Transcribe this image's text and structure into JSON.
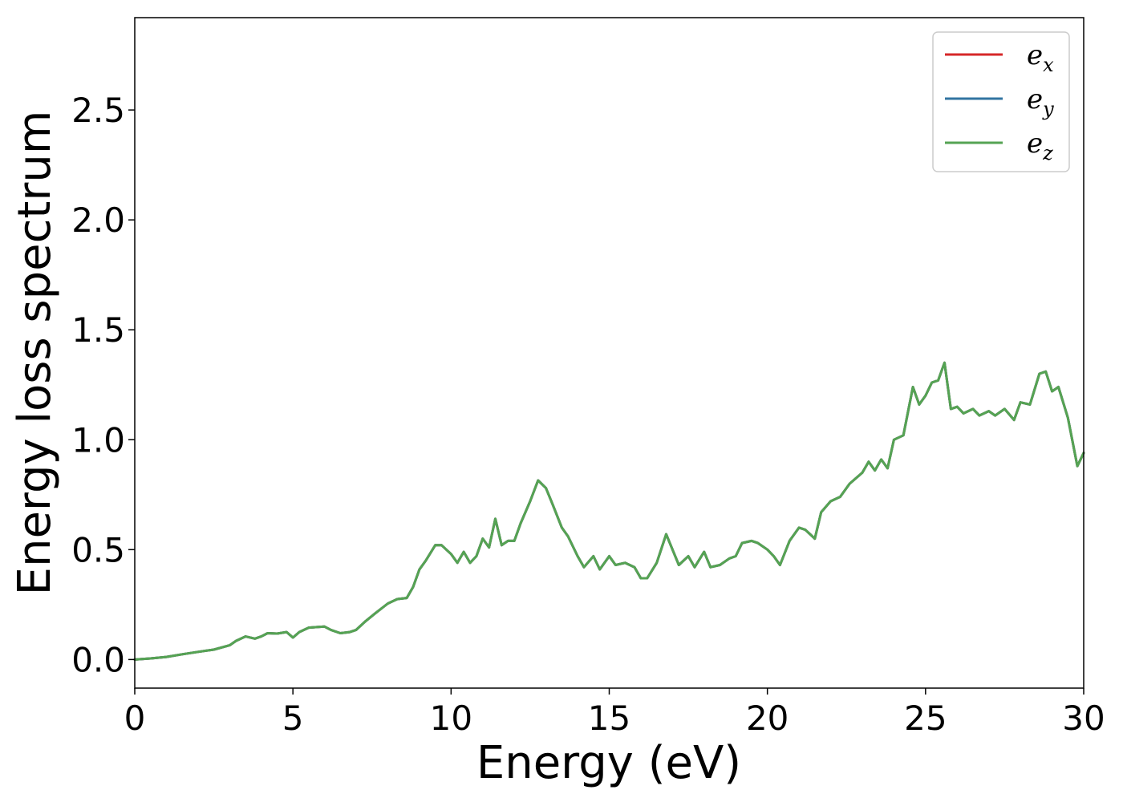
{
  "chart_data": {
    "type": "line",
    "title": "",
    "xlabel": "Energy (eV)",
    "ylabel": "Energy loss spectrum",
    "xlim": [
      0,
      30
    ],
    "ylim": [
      -0.13,
      2.92
    ],
    "xticks": [
      0,
      5,
      10,
      15,
      20,
      25,
      30
    ],
    "xtick_labels": [
      "0",
      "5",
      "10",
      "15",
      "20",
      "25",
      "30"
    ],
    "yticks": [
      0.0,
      0.5,
      1.0,
      1.5,
      2.0,
      2.5
    ],
    "ytick_labels": [
      "0.0",
      "0.5",
      "1.0",
      "1.5",
      "2.0",
      "2.5"
    ],
    "grid": false,
    "legend_position": "top-right",
    "x": [
      0.0,
      0.5,
      1.0,
      1.5,
      2.0,
      2.5,
      3.0,
      3.2,
      3.5,
      3.8,
      4.0,
      4.2,
      4.5,
      4.8,
      5.0,
      5.2,
      5.5,
      5.8,
      6.0,
      6.2,
      6.5,
      6.8,
      7.0,
      7.3,
      7.6,
      8.0,
      8.3,
      8.6,
      8.8,
      9.0,
      9.2,
      9.5,
      9.7,
      9.85,
      10.0,
      10.2,
      10.4,
      10.6,
      10.8,
      11.0,
      11.2,
      11.4,
      11.6,
      11.8,
      12.0,
      12.2,
      12.5,
      12.75,
      13.0,
      13.2,
      13.5,
      13.7,
      14.0,
      14.2,
      14.5,
      14.7,
      15.0,
      15.2,
      15.5,
      15.8,
      16.0,
      16.2,
      16.5,
      16.8,
      17.0,
      17.2,
      17.5,
      17.7,
      18.0,
      18.2,
      18.5,
      18.8,
      19.0,
      19.2,
      19.5,
      19.7,
      20.0,
      20.2,
      20.4,
      20.7,
      21.0,
      21.2,
      21.5,
      21.7,
      22.0,
      22.3,
      22.6,
      23.0,
      23.2,
      23.4,
      23.6,
      23.8,
      24.0,
      24.3,
      24.6,
      24.8,
      25.0,
      25.2,
      25.4,
      25.6,
      25.8,
      26.0,
      26.2,
      26.5,
      26.7,
      27.0,
      27.2,
      27.5,
      27.8,
      28.0,
      28.3,
      28.6,
      28.8,
      29.0,
      29.2,
      29.5,
      29.8,
      30.0
    ],
    "series": [
      {
        "name": "e_x",
        "color": "#d62728",
        "values": [
          0.0,
          0.005,
          0.012,
          0.024,
          0.035,
          0.045,
          0.065,
          0.085,
          0.105,
          0.095,
          0.105,
          0.12,
          0.118,
          0.125,
          0.1,
          0.125,
          0.145,
          0.148,
          0.15,
          0.135,
          0.12,
          0.125,
          0.135,
          0.175,
          0.21,
          0.255,
          0.275,
          0.28,
          0.33,
          0.41,
          0.45,
          0.52,
          0.52,
          0.5,
          0.48,
          0.44,
          0.49,
          0.44,
          0.47,
          0.55,
          0.51,
          0.64,
          0.52,
          0.54,
          0.54,
          0.62,
          0.72,
          0.815,
          0.78,
          0.71,
          0.6,
          0.56,
          0.47,
          0.42,
          0.47,
          0.41,
          0.47,
          0.43,
          0.44,
          0.42,
          0.37,
          0.37,
          0.44,
          0.57,
          0.5,
          0.43,
          0.47,
          0.42,
          0.49,
          0.42,
          0.43,
          0.46,
          0.47,
          0.53,
          0.54,
          0.53,
          0.5,
          0.47,
          0.43,
          0.54,
          0.6,
          0.59,
          0.55,
          0.67,
          0.72,
          0.74,
          0.8,
          0.85,
          0.9,
          0.86,
          0.91,
          0.87,
          1.0,
          1.02,
          1.24,
          1.16,
          1.2,
          1.26,
          1.27,
          1.35,
          1.14,
          1.15,
          1.12,
          1.14,
          1.11,
          1.13,
          1.11,
          1.14,
          1.09,
          1.17,
          1.16,
          1.3,
          1.31,
          1.22,
          1.24,
          1.1,
          0.88,
          0.94
        ]
      },
      {
        "name": "e_y",
        "color": "#3274a1",
        "values": [
          0.0,
          0.005,
          0.012,
          0.024,
          0.035,
          0.045,
          0.065,
          0.085,
          0.105,
          0.095,
          0.105,
          0.12,
          0.118,
          0.125,
          0.1,
          0.125,
          0.145,
          0.148,
          0.15,
          0.135,
          0.12,
          0.125,
          0.135,
          0.175,
          0.21,
          0.255,
          0.275,
          0.28,
          0.33,
          0.41,
          0.45,
          0.52,
          0.52,
          0.5,
          0.48,
          0.44,
          0.49,
          0.44,
          0.47,
          0.55,
          0.51,
          0.64,
          0.52,
          0.54,
          0.54,
          0.62,
          0.72,
          0.815,
          0.78,
          0.71,
          0.6,
          0.56,
          0.47,
          0.42,
          0.47,
          0.41,
          0.47,
          0.43,
          0.44,
          0.42,
          0.37,
          0.37,
          0.44,
          0.57,
          0.5,
          0.43,
          0.47,
          0.42,
          0.49,
          0.42,
          0.43,
          0.46,
          0.47,
          0.53,
          0.54,
          0.53,
          0.5,
          0.47,
          0.43,
          0.54,
          0.6,
          0.59,
          0.55,
          0.67,
          0.72,
          0.74,
          0.8,
          0.85,
          0.9,
          0.86,
          0.91,
          0.87,
          1.0,
          1.02,
          1.24,
          1.16,
          1.2,
          1.26,
          1.27,
          1.35,
          1.14,
          1.15,
          1.12,
          1.14,
          1.11,
          1.13,
          1.11,
          1.14,
          1.09,
          1.17,
          1.16,
          1.3,
          1.31,
          1.22,
          1.24,
          1.1,
          0.88,
          0.94
        ]
      },
      {
        "name": "e_z",
        "color": "#55a353",
        "values": [
          0.0,
          0.005,
          0.012,
          0.024,
          0.035,
          0.045,
          0.065,
          0.085,
          0.105,
          0.095,
          0.105,
          0.12,
          0.118,
          0.125,
          0.1,
          0.125,
          0.145,
          0.148,
          0.15,
          0.135,
          0.12,
          0.125,
          0.135,
          0.175,
          0.21,
          0.255,
          0.275,
          0.28,
          0.33,
          0.41,
          0.45,
          0.52,
          0.52,
          0.5,
          0.48,
          0.44,
          0.49,
          0.44,
          0.47,
          0.55,
          0.51,
          0.64,
          0.52,
          0.54,
          0.54,
          0.62,
          0.72,
          0.815,
          0.78,
          0.71,
          0.6,
          0.56,
          0.47,
          0.42,
          0.47,
          0.41,
          0.47,
          0.43,
          0.44,
          0.42,
          0.37,
          0.37,
          0.44,
          0.57,
          0.5,
          0.43,
          0.47,
          0.42,
          0.49,
          0.42,
          0.43,
          0.46,
          0.47,
          0.53,
          0.54,
          0.53,
          0.5,
          0.47,
          0.43,
          0.54,
          0.6,
          0.59,
          0.55,
          0.67,
          0.72,
          0.74,
          0.8,
          0.85,
          0.9,
          0.86,
          0.91,
          0.87,
          1.0,
          1.02,
          1.24,
          1.16,
          1.2,
          1.26,
          1.27,
          1.35,
          1.14,
          1.15,
          1.12,
          1.14,
          1.11,
          1.13,
          1.11,
          1.14,
          1.09,
          1.17,
          1.16,
          1.3,
          1.31,
          1.22,
          1.24,
          1.1,
          0.88,
          0.94
        ]
      }
    ],
    "legend": [
      {
        "base": "e",
        "sub": "x",
        "color": "#d62728"
      },
      {
        "base": "e",
        "sub": "y",
        "color": "#3274a1"
      },
      {
        "base": "e",
        "sub": "z",
        "color": "#55a353"
      }
    ]
  }
}
